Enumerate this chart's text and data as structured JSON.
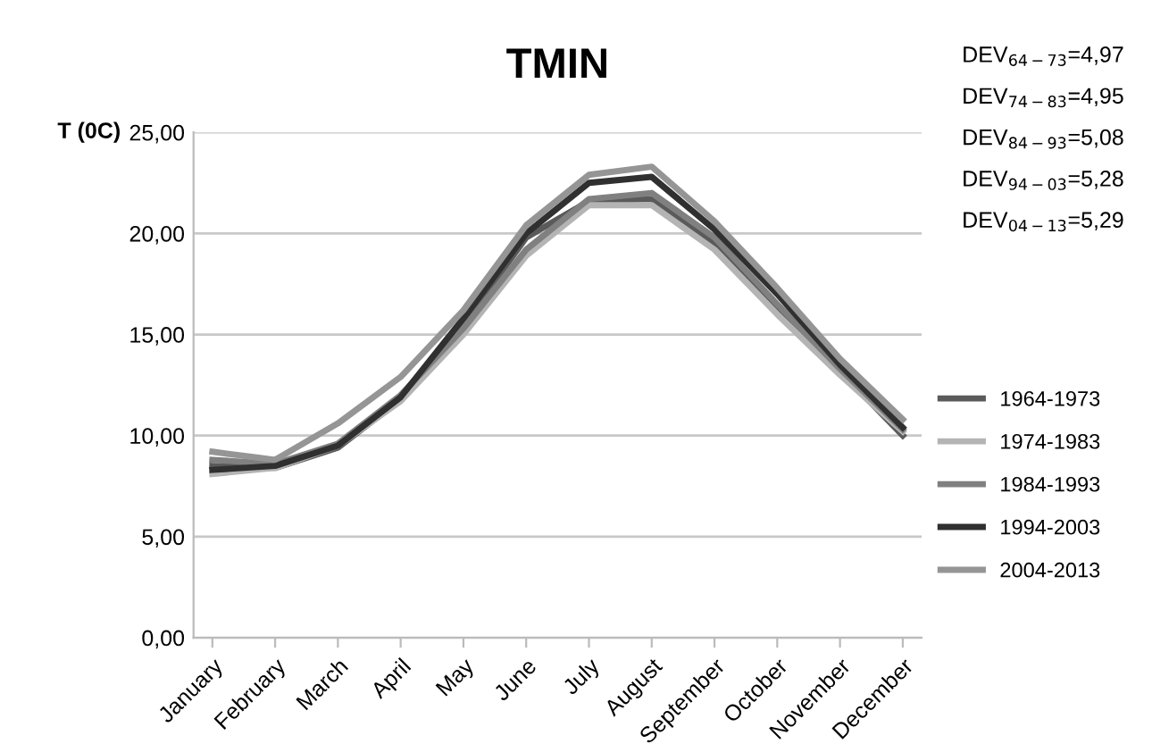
{
  "chart_data": {
    "type": "line",
    "title": "TMIN",
    "ylabel": "T (0C)",
    "categories": [
      "January",
      "February",
      "March",
      "April",
      "May",
      "June",
      "July",
      "August",
      "September",
      "October",
      "November",
      "December"
    ],
    "series": [
      {
        "name": "1964-1973",
        "color": "#5a5a5a",
        "values": [
          8.5,
          8.4,
          9.4,
          11.8,
          15.5,
          19.8,
          21.6,
          21.7,
          19.5,
          16.2,
          13.2,
          10.0
        ]
      },
      {
        "name": "1974-1983",
        "color": "#b4b4b4",
        "values": [
          8.1,
          8.4,
          9.5,
          11.7,
          15.0,
          18.9,
          21.4,
          21.4,
          19.2,
          16.0,
          13.0,
          10.2
        ]
      },
      {
        "name": "1984-1993",
        "color": "#808080",
        "values": [
          8.8,
          8.6,
          9.6,
          12.0,
          15.3,
          19.2,
          21.7,
          22.0,
          19.8,
          16.5,
          13.3,
          10.3
        ]
      },
      {
        "name": "1994-2003",
        "color": "#303030",
        "values": [
          8.3,
          8.5,
          9.5,
          11.9,
          15.8,
          20.0,
          22.5,
          22.8,
          20.2,
          17.0,
          13.5,
          10.4
        ]
      },
      {
        "name": "2004-2013",
        "color": "#959595",
        "values": [
          9.2,
          8.8,
          10.6,
          12.9,
          16.2,
          20.4,
          22.9,
          23.3,
          20.6,
          17.3,
          13.8,
          10.8
        ]
      }
    ],
    "ylim": [
      0,
      25
    ],
    "yticks": [
      {
        "value": 0,
        "label": "0,00"
      },
      {
        "value": 5,
        "label": "5,00"
      },
      {
        "value": 10,
        "label": "10,00"
      },
      {
        "value": 15,
        "label": "15,00"
      },
      {
        "value": 20,
        "label": "20,00"
      },
      {
        "value": 25,
        "label": "25,00"
      }
    ],
    "annotations": [
      "DEV$_{64−73}$=4,97",
      "DEV$_{74−83}$=4,95",
      "DEV$_{84−93}$=5,08",
      "DEV$_{94−03}$=5,28",
      "DEV$_{04−13}$=5,29"
    ],
    "grid": "y",
    "legend": "right",
    "marker": "none",
    "line_style": "solid"
  }
}
